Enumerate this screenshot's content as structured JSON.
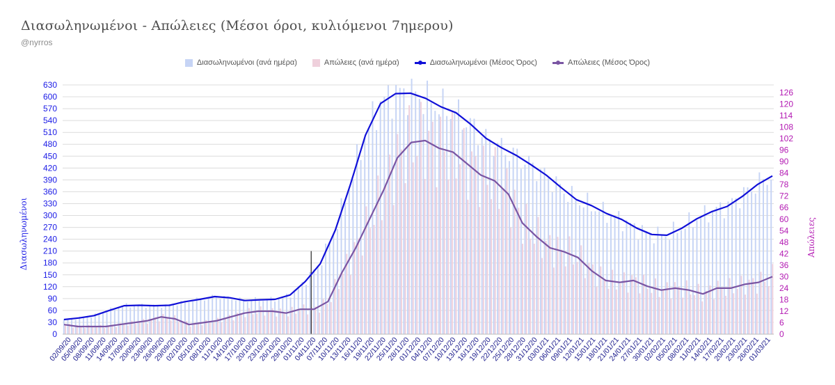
{
  "header": {
    "title": "Διασωληνωμένοι - Απώλειες (Μέσοι όροι, κυλιόμενοι 7ημερου)",
    "subtitle": "@nyrros"
  },
  "colors": {
    "intubated_bar": "#c6d4f5",
    "deaths_bar": "#efd0dc",
    "intubated_line": "#1010d8",
    "deaths_line": "#7a55a3",
    "grid": "#dcdcdc",
    "left_axis": "#1a1ae6",
    "right_axis": "#b31ab3"
  },
  "chart_data": {
    "type": "bar+line",
    "title": "Διασωληνωμένοι - Απώλειες (Μέσοι όροι, κυλιόμενοι 7ημερου)",
    "legend": [
      {
        "label": "Διασωληνωμένοι (ανά ημέρα)",
        "kind": "bar",
        "color": "#c6d4f5"
      },
      {
        "label": "Απώλειες (ανά ημέρα)",
        "kind": "bar",
        "color": "#efd0dc"
      },
      {
        "label": "Διασωληνωμένοι (Μέσος Όρος)",
        "kind": "line",
        "color": "#1010d8"
      },
      {
        "label": "Απώλειες (Μέσος Όρος)",
        "kind": "line",
        "color": "#7a55a3"
      }
    ],
    "ylabel_left": "Διασωληνωμένοι",
    "ylabel_right": "Απώλειες",
    "ylim_left": [
      0,
      630
    ],
    "ylim_right": [
      0,
      130
    ],
    "yticks_left": [
      0,
      30,
      60,
      90,
      120,
      150,
      180,
      210,
      240,
      270,
      300,
      330,
      360,
      390,
      420,
      450,
      480,
      510,
      540,
      570,
      600,
      630
    ],
    "yticks_right": [
      0,
      6,
      12,
      18,
      24,
      30,
      36,
      42,
      48,
      54,
      60,
      66,
      72,
      78,
      84,
      90,
      96,
      102,
      108,
      114,
      120,
      126
    ],
    "x_labels": [
      "02/09/20",
      "05/09/20",
      "08/09/20",
      "11/09/20",
      "14/09/20",
      "17/09/20",
      "20/09/20",
      "23/09/20",
      "26/09/20",
      "29/09/20",
      "02/10/20",
      "05/10/20",
      "08/10/20",
      "11/10/20",
      "14/10/20",
      "17/10/20",
      "20/10/20",
      "23/10/20",
      "26/10/20",
      "29/10/20",
      "01/11/20",
      "04/11/20",
      "07/11/20",
      "10/11/20",
      "13/11/20",
      "16/11/20",
      "19/11/20",
      "22/11/20",
      "25/11/20",
      "28/11/20",
      "01/12/20",
      "04/12/20",
      "07/12/20",
      "10/12/20",
      "13/12/20",
      "16/12/20",
      "19/12/20",
      "22/12/20",
      "25/12/20",
      "28/12/20",
      "31/12/20",
      "03/01/21",
      "06/01/21",
      "09/01/21",
      "12/01/21",
      "15/01/21",
      "18/01/21",
      "21/01/21",
      "24/01/21",
      "27/01/21",
      "30/01/21",
      "02/02/21",
      "05/02/21",
      "08/02/21",
      "11/02/21",
      "14/02/21",
      "17/02/21",
      "20/02/21",
      "23/02/21",
      "26/02/21",
      "01/03/21"
    ],
    "intubated_avg": [
      37,
      41,
      47,
      60,
      72,
      73,
      72,
      73,
      82,
      88,
      95,
      92,
      85,
      87,
      88,
      99,
      133,
      178,
      263,
      378,
      503,
      583,
      608,
      609,
      596,
      575,
      560,
      530,
      495,
      472,
      452,
      428,
      402,
      370,
      340,
      325,
      305,
      290,
      268,
      252,
      250,
      268,
      292,
      310,
      323,
      348,
      378,
      400
    ],
    "deaths_avg": [
      5,
      4,
      4,
      4,
      5,
      6,
      7,
      9,
      8,
      5,
      6,
      7,
      9,
      11,
      12,
      12,
      11,
      13,
      13,
      17,
      32,
      45,
      60,
      75,
      92,
      100,
      101,
      97,
      95,
      89,
      83,
      80,
      73,
      58,
      51,
      45,
      43,
      40,
      33,
      28,
      27,
      28,
      25,
      23,
      24,
      23,
      21,
      24,
      24,
      26,
      27,
      30
    ],
    "marker_date": "04/11/20"
  }
}
